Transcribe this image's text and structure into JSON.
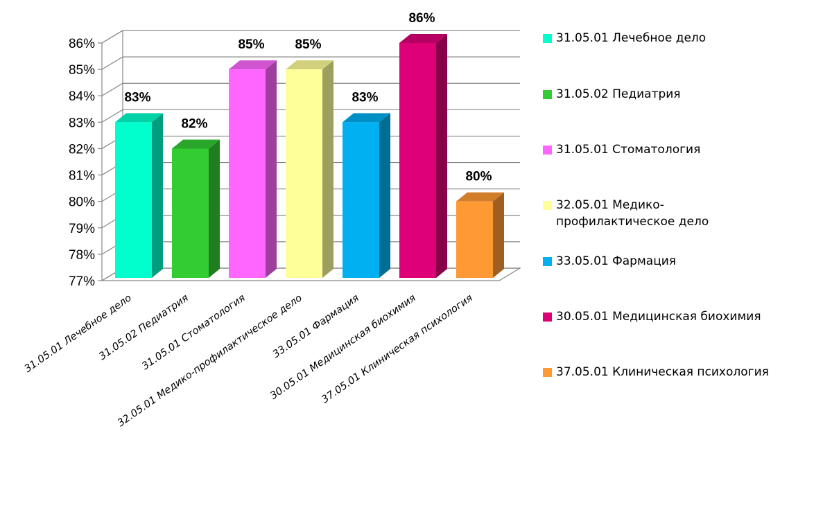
{
  "chart_data": {
    "type": "bar",
    "title": "",
    "xlabel": "",
    "ylabel": "",
    "ylim": [
      77,
      86
    ],
    "y_tick_step": 1,
    "y_tick_suffix": "%",
    "three_d": true,
    "grid": true,
    "legend_position": "right",
    "categories": [
      "31.05.01 Лечебное дело",
      "31.05.02 Педиатрия",
      "31.05.01 Стоматология",
      "32.05.01 Медико-профилактическое дело",
      "33.05.01 Фармация",
      "30.05.01 Медицинская биохимия",
      "37.05.01 Клиническая психология"
    ],
    "values": [
      83,
      82,
      85,
      85,
      83,
      86,
      80
    ],
    "data_labels": [
      "83%",
      "82%",
      "85%",
      "85%",
      "83%",
      "86%",
      "80%"
    ],
    "colors": [
      "#00FFCC",
      "#33CC33",
      "#FF66FF",
      "#FFFF99",
      "#00B0F0",
      "#DD0077",
      "#FF9933"
    ],
    "legend": [
      "31.05.01 Лечебное дело",
      "31.05.02 Педиатрия",
      "31.05.01 Стоматология",
      "32.05.01 Медико-\nпрофилактическое дело",
      "33.05.01 Фармация",
      "30.05.01 Медицинская биохимия",
      "37.05.01 Клиническая психология"
    ]
  }
}
